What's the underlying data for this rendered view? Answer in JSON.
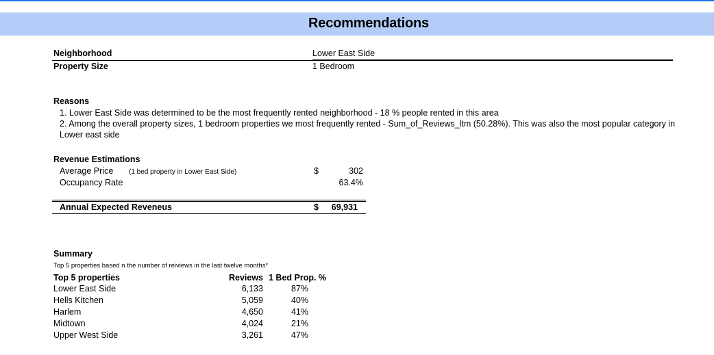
{
  "title": "Recommendations",
  "details": {
    "neighborhood_label": "Neighborhood",
    "neighborhood_value": "Lower East Side",
    "size_label": "Property Size",
    "size_value": "1 Bedroom"
  },
  "reasons": {
    "heading": "Reasons",
    "items": [
      "1. Lower East Side was determined to be the most frequently rented neighborhood - 18 % people rented in this area",
      "2. Among the overall property sizes, 1 bedroom properties we most frequently rented - Sum_of_Reviews_ltm (50.28%). This was also the most popular category in Lower east side"
    ]
  },
  "revenue": {
    "heading": "Revenue Estimations",
    "avg_price_label": "Average Price",
    "avg_price_note": "(1 bed property in Lower East Side)",
    "currency": "$",
    "avg_price_value": "302",
    "occupancy_label": "Occupancy Rate",
    "occupancy_value": "63.4%",
    "annual_label": "Annual Expected Reveneus",
    "annual_currency": "$",
    "annual_value": "69,931"
  },
  "summary": {
    "heading": "Summary",
    "subtitle": "Top 5 properties based n the number of reiviews in the last twelve months*",
    "columns": [
      "Top 5 properties",
      "Reviews",
      "1 Bed Prop. %"
    ],
    "rows": [
      [
        "Lower East Side",
        "6,133",
        "87%"
      ],
      [
        "Hells Kitchen",
        "5,059",
        "40%"
      ],
      [
        "Harlem",
        "4,650",
        "41%"
      ],
      [
        "Midtown",
        "4,024",
        "21%"
      ],
      [
        "Upper West Side",
        "3,261",
        "47%"
      ]
    ]
  }
}
